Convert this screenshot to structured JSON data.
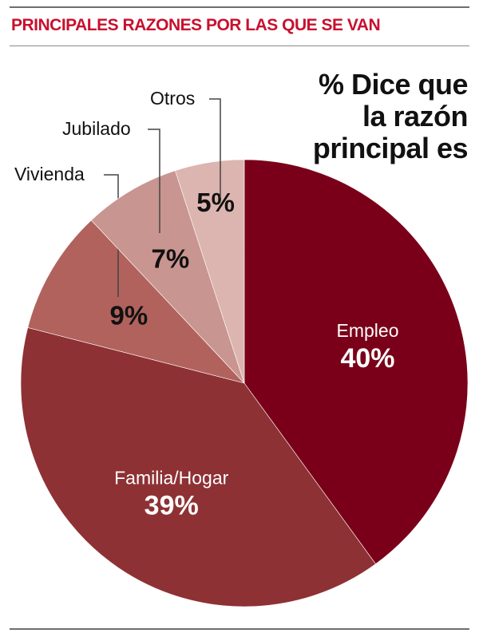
{
  "header": {
    "title": "PRINCIPALES RAZONES POR LAS QUE SE VAN"
  },
  "subtitle_lines": [
    "% Dice que",
    "la razón",
    "principal es"
  ],
  "chart_data": {
    "type": "pie",
    "title": "PRINCIPALES RAZONES POR LAS QUE SE VAN",
    "subtitle": "% Dice que la razón principal es",
    "slices": [
      {
        "label": "Empleo",
        "value": 40,
        "value_label": "40%",
        "color": "#7a0019"
      },
      {
        "label": "Familia/Hogar",
        "value": 39,
        "value_label": "39%",
        "color": "#8e3134"
      },
      {
        "label": "Vivienda",
        "value": 9,
        "value_label": "9%",
        "color": "#b1625d"
      },
      {
        "label": "Jubilado",
        "value": 7,
        "value_label": "7%",
        "color": "#c99590"
      },
      {
        "label": "Otros",
        "value": 5,
        "value_label": "5%",
        "color": "#dcb5b0"
      }
    ]
  }
}
